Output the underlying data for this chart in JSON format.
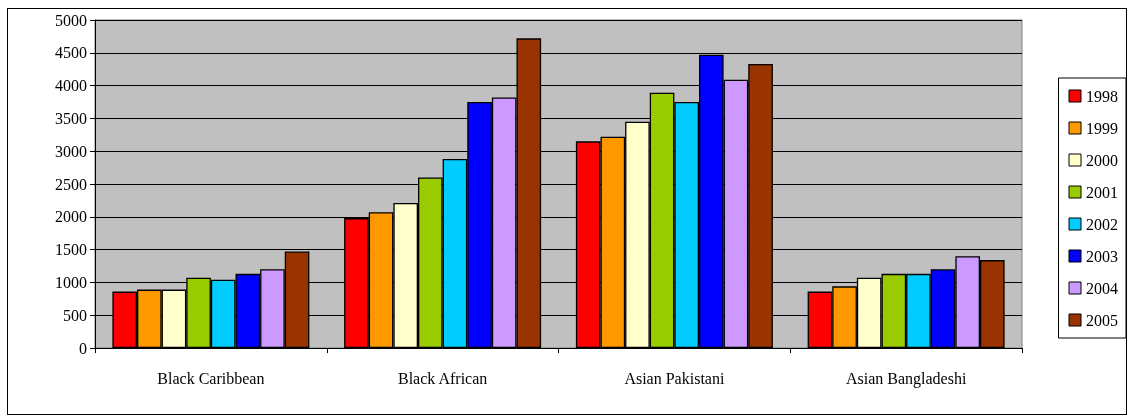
{
  "chart_data": {
    "type": "bar",
    "categories": [
      "Black Caribbean",
      "Black African",
      "Asian Pakistani",
      "Asian Bangladeshi"
    ],
    "series": [
      {
        "name": "1998",
        "color": "#ff0000",
        "values": [
          860,
          1980,
          3150,
          860
        ]
      },
      {
        "name": "1999",
        "color": "#ff9900",
        "values": [
          890,
          2070,
          3220,
          940
        ]
      },
      {
        "name": "2000",
        "color": "#ffffcc",
        "values": [
          890,
          2210,
          3450,
          1070
        ]
      },
      {
        "name": "2001",
        "color": "#99cc00",
        "values": [
          1070,
          2600,
          3890,
          1130
        ]
      },
      {
        "name": "2002",
        "color": "#00ccff",
        "values": [
          1040,
          2880,
          3750,
          1130
        ]
      },
      {
        "name": "2003",
        "color": "#0000ff",
        "values": [
          1130,
          3750,
          4470,
          1200
        ]
      },
      {
        "name": "2004",
        "color": "#cc99ff",
        "values": [
          1200,
          3820,
          4090,
          1400
        ]
      },
      {
        "name": "2005",
        "color": "#993300",
        "values": [
          1470,
          4720,
          4330,
          1340
        ]
      }
    ],
    "ylim": [
      0,
      5000
    ],
    "yticks": [
      0,
      500,
      1000,
      1500,
      2000,
      2500,
      3000,
      3500,
      4000,
      4500,
      5000
    ],
    "grid": "y",
    "legend": "right"
  }
}
